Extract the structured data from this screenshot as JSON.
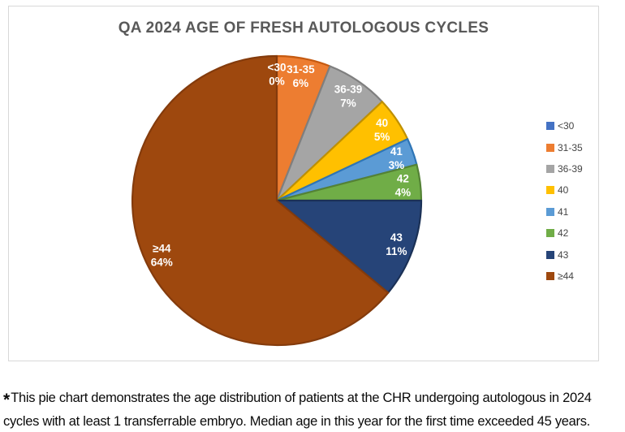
{
  "chart": {
    "title": "QA 2024 AGE OF FRESH AUTOLOGOUS CYCLES"
  },
  "chart_data": {
    "type": "pie",
    "title": "QA 2024 AGE OF FRESH AUTOLOGOUS CYCLES",
    "categories": [
      "<30",
      "31-35",
      "36-39",
      "40",
      "41",
      "42",
      "43",
      "≥44"
    ],
    "values": [
      0,
      6,
      7,
      5,
      3,
      4,
      11,
      64
    ],
    "value_unit": "%",
    "data_labels": [
      "<30 0%",
      "31-35 6%",
      "36-39 7%",
      "40 5%",
      "41 3%",
      "42 4%",
      "43 11%",
      "≥44 64%"
    ],
    "colors": [
      "#4472C4",
      "#ED7D31",
      "#A5A5A5",
      "#FFC000",
      "#5B9BD5",
      "#70AD47",
      "#264478",
      "#9E480E"
    ],
    "border_colors": [
      "#2E5597",
      "#C55A11",
      "#7F7F7F",
      "#BF9000",
      "#2E75B6",
      "#548235",
      "#1B3156",
      "#843B0C"
    ],
    "label_color": "#FFFFFF",
    "start_angle_deg": 0,
    "direction": "clockwise",
    "legend_position": "right"
  },
  "caption": {
    "asterisk": "*",
    "lines": [
      "This pie chart demonstrates the age distribution of patients at the CHR undergoing autologous in 2024",
      "cycles with at least 1 transferrable embryo. Median age in this year for the first time exceeded 45 years."
    ]
  }
}
